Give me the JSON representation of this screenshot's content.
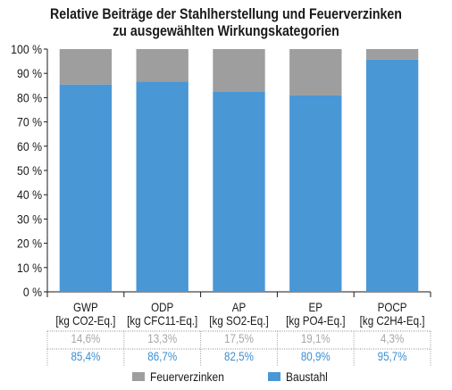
{
  "chart_data": {
    "type": "bar",
    "stacked": true,
    "percent_stacked": true,
    "title_lines": [
      "Relative Beiträge der Stahlherstellung und Feuerverzinken",
      "zu ausgewählten Wirkungskategorien"
    ],
    "categories": [
      {
        "name": "GWP",
        "unit": "[kg CO2-Eq.]"
      },
      {
        "name": "ODP",
        "unit": "[kg CFC11-Eq.]"
      },
      {
        "name": "AP",
        "unit": "[kg SO2-Eq.]"
      },
      {
        "name": "EP",
        "unit": "[kg PO4-Eq.]"
      },
      {
        "name": "POCP",
        "unit": "[kg C2H4-Eq.]"
      }
    ],
    "series": [
      {
        "name": "Baustahl",
        "color": "#4a97d6",
        "values": [
          85.4,
          86.7,
          82.5,
          80.9,
          95.7
        ],
        "labels": [
          "85,4%",
          "86,7%",
          "82,5%",
          "80,9%",
          "95,7%"
        ]
      },
      {
        "name": "Feuerverzinken",
        "color": "#9e9e9e",
        "values": [
          14.6,
          13.3,
          17.5,
          19.1,
          4.3
        ],
        "labels": [
          "14,6%",
          "13,3%",
          "17,5%",
          "19,1%",
          "4,3%"
        ]
      }
    ],
    "ylim": [
      0,
      100
    ],
    "yticks": [
      {
        "value": 0,
        "label": "0 %"
      },
      {
        "value": 10,
        "label": "10 %"
      },
      {
        "value": 20,
        "label": "20 %"
      },
      {
        "value": 30,
        "label": "30 %"
      },
      {
        "value": 40,
        "label": "40 %"
      },
      {
        "value": 50,
        "label": "50 %"
      },
      {
        "value": 60,
        "label": "60 %"
      },
      {
        "value": 70,
        "label": "70 %"
      },
      {
        "value": 80,
        "label": "80 %"
      },
      {
        "value": 90,
        "label": "90 %"
      },
      {
        "value": 100,
        "label": "100 %"
      }
    ],
    "legend": {
      "position": "bottom",
      "entries": [
        {
          "label": "Feuerverzinken",
          "color": "#9e9e9e"
        },
        {
          "label": "Baustahl",
          "color": "#4a97d6"
        }
      ]
    },
    "data_table_colors": {
      "Feuerverzinken": "#a8a8a8",
      "Baustahl": "#3b8fd4"
    },
    "grid": false
  }
}
